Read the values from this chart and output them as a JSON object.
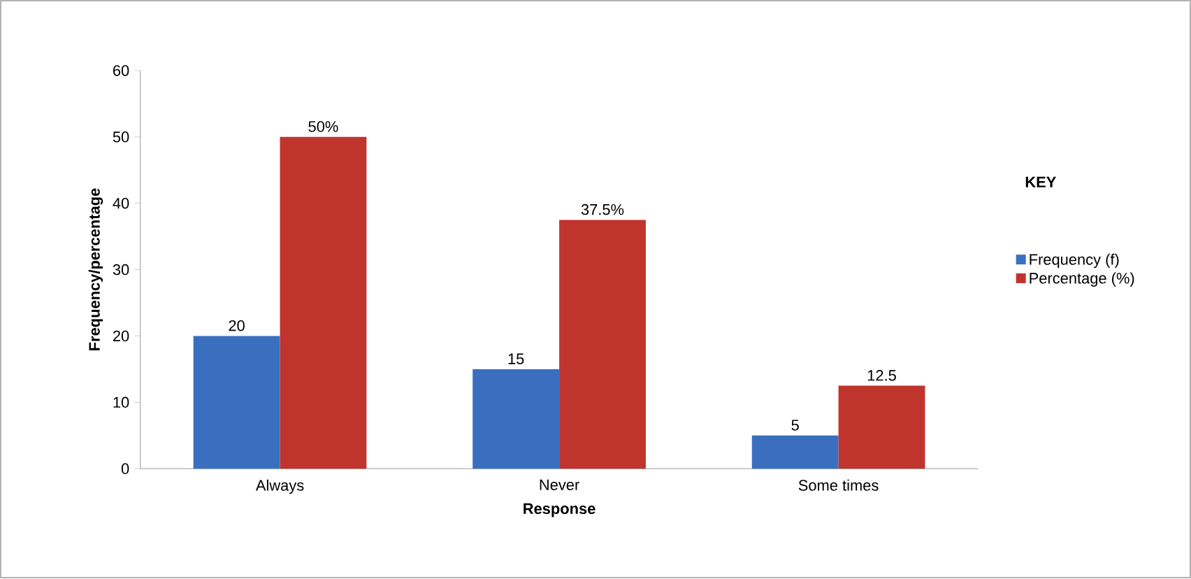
{
  "chart_data": {
    "type": "bar",
    "xlabel": "Response",
    "ylabel": "Frequency/percentage",
    "legend_title": "KEY",
    "categories": [
      "Always",
      "Never",
      "Some times"
    ],
    "series": [
      {
        "name": "Frequency (f)",
        "color": "#3a6fc0",
        "values": [
          20,
          15,
          5
        ],
        "value_labels": [
          "20",
          "15",
          "5"
        ]
      },
      {
        "name": "Percentage (%)",
        "color": "#c0342e",
        "values": [
          50,
          37.5,
          12.5
        ],
        "value_labels": [
          "50%",
          "37.5%",
          "12.5"
        ]
      }
    ],
    "ylim": [
      0,
      60
    ],
    "yticks": [
      0,
      10,
      20,
      30,
      40,
      50,
      60
    ],
    "grid": false,
    "legend": "right"
  }
}
